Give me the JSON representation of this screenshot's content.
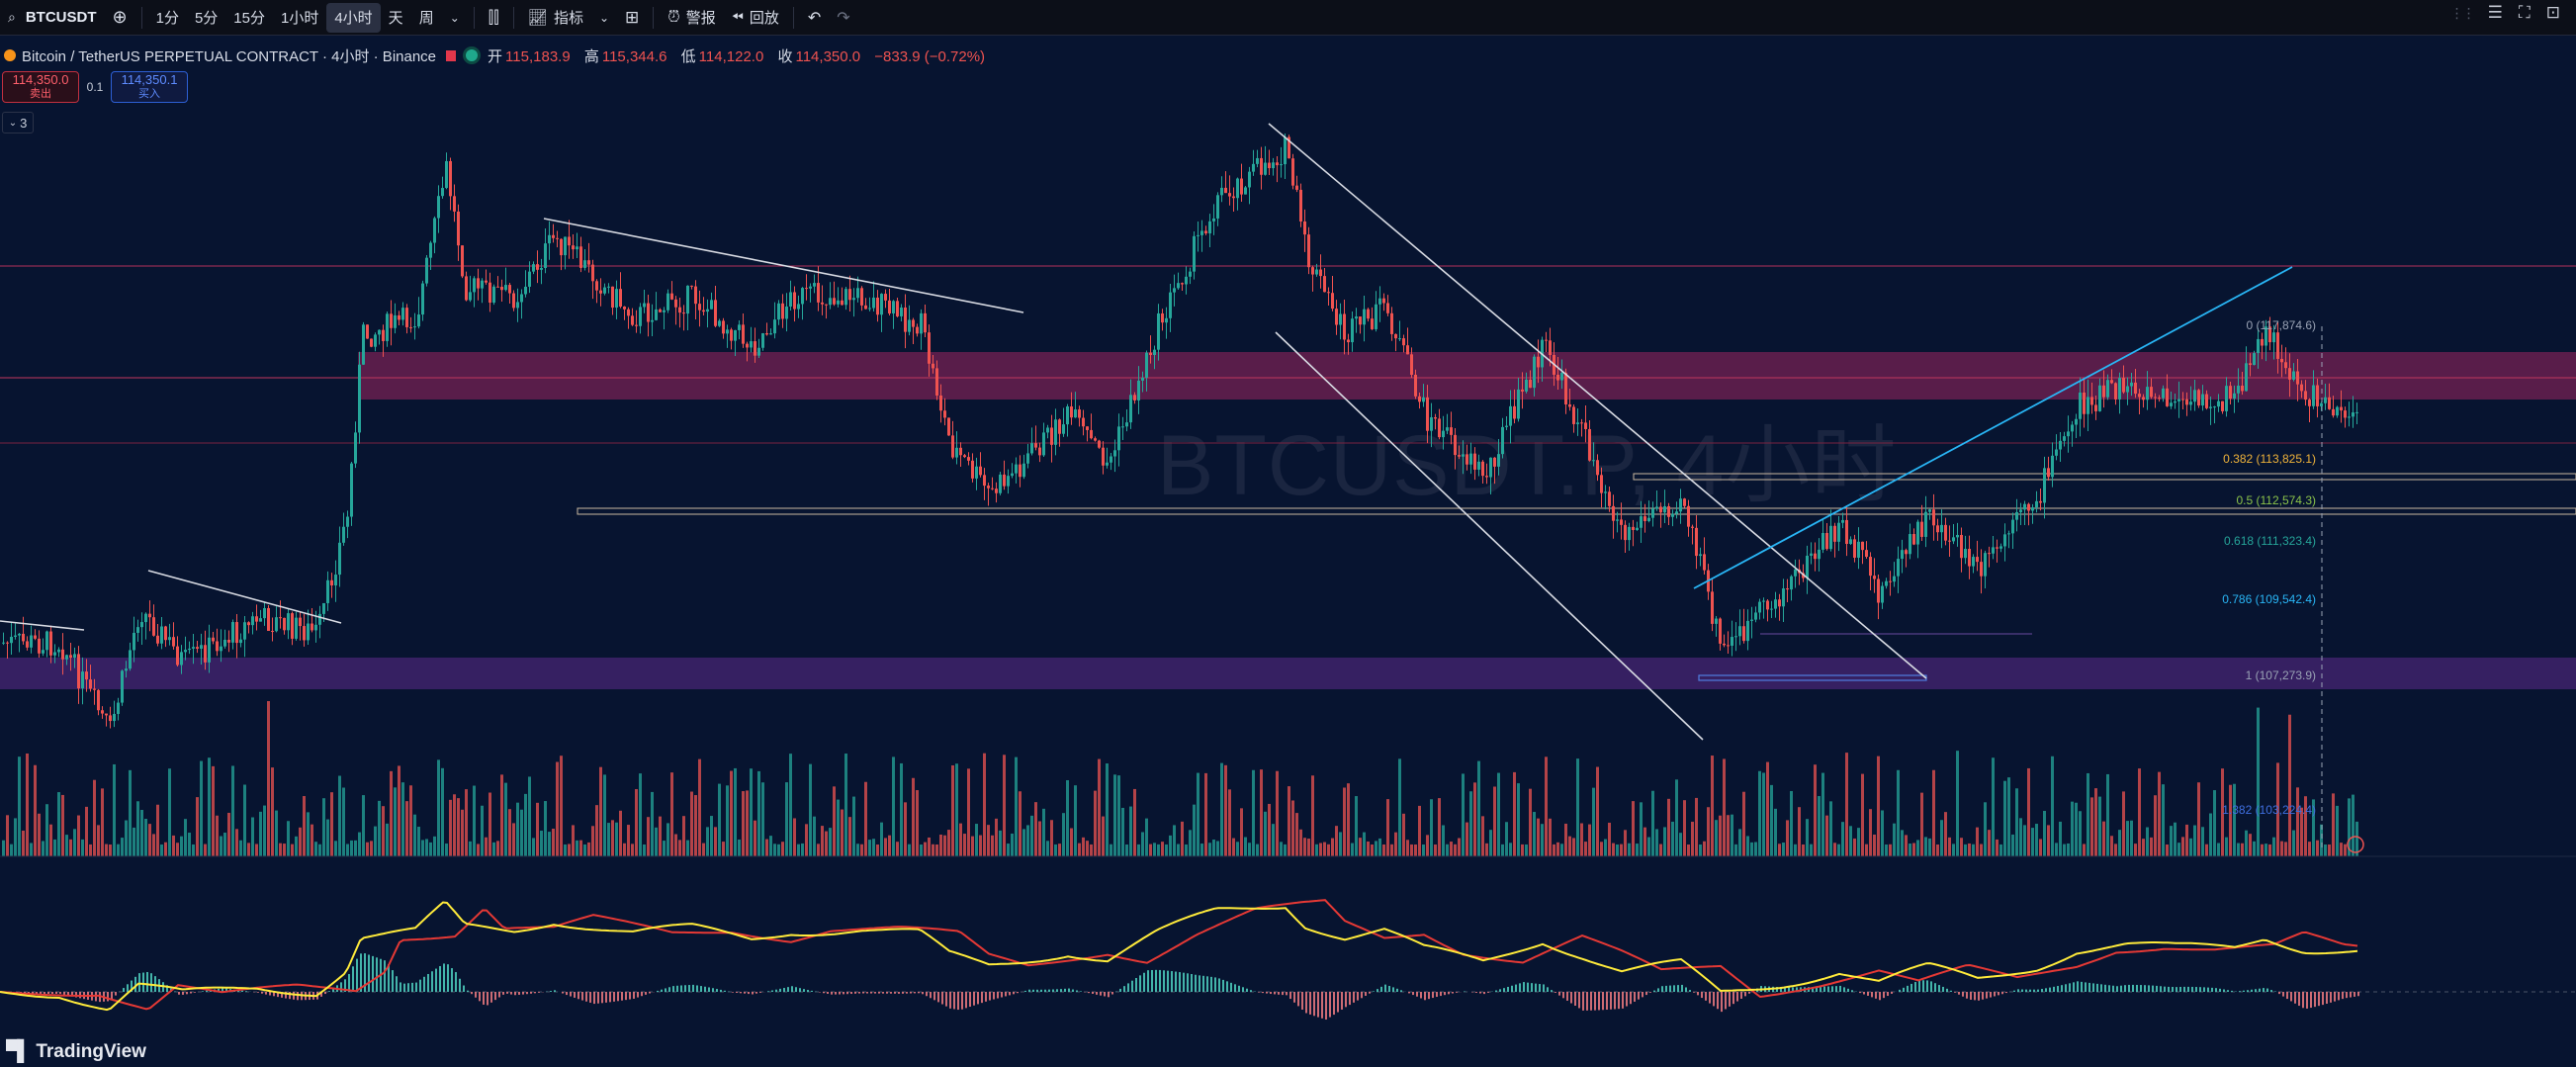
{
  "toolbar": {
    "symbol": "BTCUSDT",
    "intervals": [
      "1分",
      "5分",
      "15分",
      "1小时",
      "4小时",
      "天",
      "周"
    ],
    "active_interval": "4小时",
    "indicators_label": "指标",
    "alert_label": "警报",
    "replay_label": "回放"
  },
  "legend": {
    "title": "Bitcoin / TetherUS PERPETUAL CONTRACT · 4小时 · Binance",
    "open_label": "开",
    "open": "115,183.9",
    "high_label": "高",
    "high": "115,344.6",
    "low_label": "低",
    "low": "114,122.0",
    "close_label": "收",
    "close": "114,350.0",
    "change": "−833.9 (−0.72%)"
  },
  "trade": {
    "sell_price": "114,350.0",
    "sell_label": "卖出",
    "spread": "0.1",
    "buy_price": "114,350.1",
    "buy_label": "买入"
  },
  "indicator_count": "3",
  "watermark": "BTCUSDT.P, 4小时",
  "fib_levels": [
    {
      "label": "0 (117,874.6)",
      "color": "#9aa3b5"
    },
    {
      "label": "0.382 (113,825.1)",
      "color": "#f0b33a"
    },
    {
      "label": "0.5 (112,574.3)",
      "color": "#8bc34a"
    },
    {
      "label": "0.618 (111,323.4)",
      "color": "#26a69a"
    },
    {
      "label": "0.786 (109,542.4)",
      "color": "#29b6f6"
    },
    {
      "label": "1 (107,273.9)",
      "color": "#9aa3b5"
    },
    {
      "label": "1.382 (103,224.4)",
      "color": "#3f6fe0"
    }
  ],
  "colors": {
    "up": "#26a69a",
    "down": "#ef5350",
    "background": "#071430",
    "resistance_zone": "#9c2560",
    "support_zone": "#5c2a8c",
    "macd_fast": "#ffeb3b",
    "macd_slow": "#e53935"
  },
  "brand": "TradingView"
}
